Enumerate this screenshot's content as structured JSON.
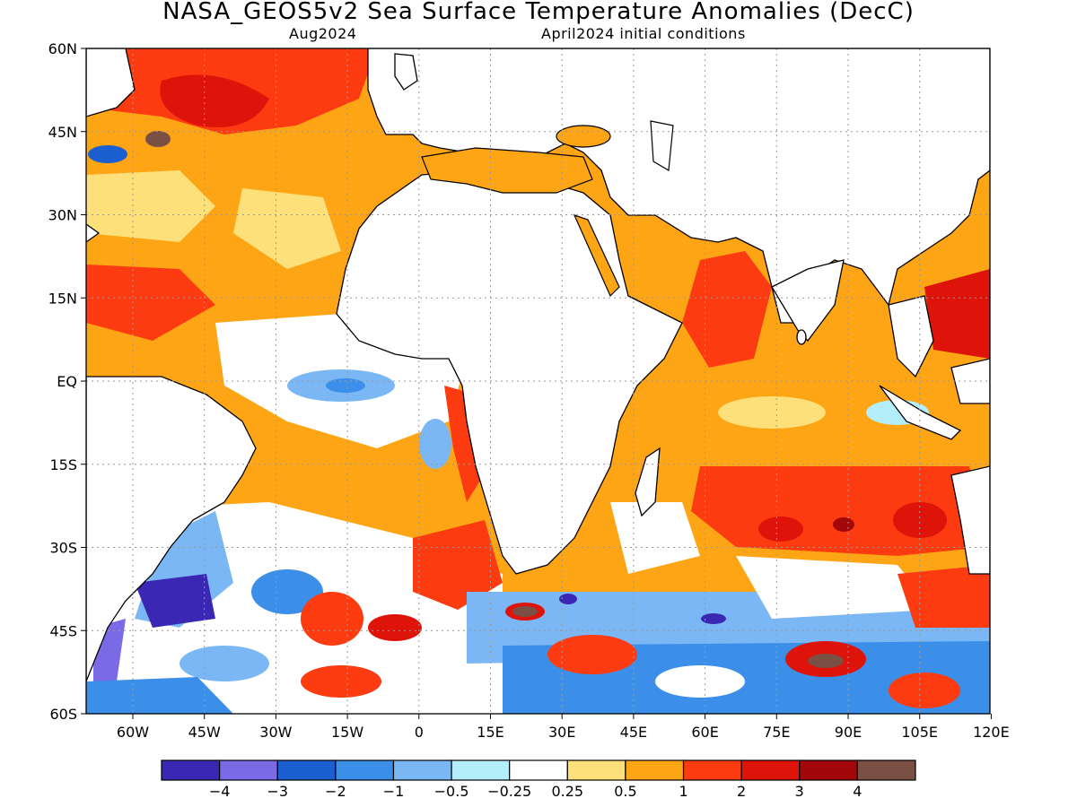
{
  "title": "NASA_GEOS5v2 Sea Surface Temperature Anomalies (DecC)",
  "subtitle_left": "Aug2024",
  "subtitle_right": "April2024 initial conditions",
  "lat_labels": [
    "60N",
    "45N",
    "30N",
    "15N",
    "EQ",
    "15S",
    "30S",
    "45S",
    "60S"
  ],
  "lon_labels": [
    "60W",
    "45W",
    "30W",
    "15W",
    "0",
    "15E",
    "30E",
    "45E",
    "60E",
    "75E",
    "90E",
    "105E",
    "120E"
  ],
  "colorbar": {
    "tick_labels": [
      "-4",
      "-3",
      "-2",
      "-1",
      "-0.5",
      "-0.25",
      "0.25",
      "0.5",
      "1",
      "2",
      "3",
      "4"
    ],
    "colors": [
      "#3a27b4",
      "#7b6ae6",
      "#1c5fd0",
      "#3c8fe8",
      "#7ab7f4",
      "#b4eefa",
      "#ffffff",
      "#fde07a",
      "#fea516",
      "#fd3b10",
      "#de130a",
      "#a2080a",
      "#7a4f44"
    ]
  },
  "map_colors": {
    "land": "#ffffff",
    "coast": "#000000",
    "grid": "#9a9a9a"
  }
}
